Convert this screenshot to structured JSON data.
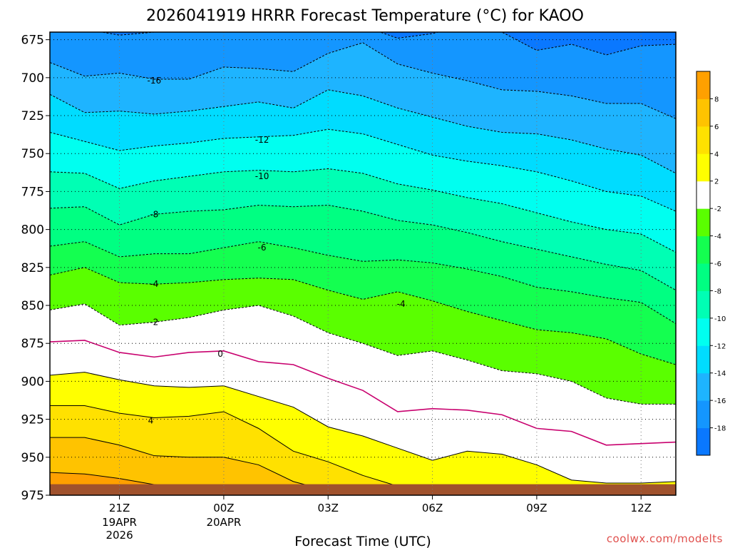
{
  "chart_data": {
    "type": "heatmap",
    "title": "2026041919 HRRR Forecast Temperature (°C) for KAOO",
    "xlabel": "Forecast Time (UTC)",
    "ylabel": "",
    "credit": "coolwx.com/modelts",
    "y_axis": {
      "unit": "hPa",
      "inverted": true,
      "ylim": [
        975,
        670
      ],
      "ticks": [
        "675",
        "700",
        "725",
        "750",
        "775",
        "800",
        "825",
        "850",
        "875",
        "900",
        "925",
        "950",
        "975"
      ]
    },
    "x_axis": {
      "xlim": [
        "2026-04-19T19Z",
        "2026-04-20T13Z"
      ],
      "ticks": [
        {
          "hour": 21,
          "label": "21Z",
          "sub": [
            "19APR",
            "2026"
          ]
        },
        {
          "hour": 24,
          "label": "00Z",
          "sub": [
            "20APR"
          ]
        },
        {
          "hour": 27,
          "label": "03Z",
          "sub": []
        },
        {
          "hour": 30,
          "label": "06Z",
          "sub": []
        },
        {
          "hour": 33,
          "label": "09Z",
          "sub": []
        },
        {
          "hour": 36,
          "label": "12Z",
          "sub": []
        }
      ],
      "hour_range": [
        19,
        37
      ]
    },
    "grid": true,
    "colorbar": {
      "placement": "right",
      "levels": [
        -20,
        -18,
        -16,
        -14,
        -12,
        -10,
        -8,
        -6,
        -4,
        -2,
        2,
        4,
        6,
        8,
        10
      ],
      "tick_labels": [
        "-18",
        "-16",
        "-14",
        "-12",
        "-10",
        "-8",
        "-6",
        "-4",
        "-2",
        "2",
        "4",
        "6",
        "8"
      ],
      "colors": [
        "#0a78ff",
        "#1496ff",
        "#1eb4ff",
        "#00dcff",
        "#00fff0",
        "#00ffb4",
        "#00ff82",
        "#14ff50",
        "#5aff00",
        "#ffffff",
        "#ffff00",
        "#ffe100",
        "#ffc300",
        "#ffa000"
      ]
    },
    "hours": [
      19,
      20,
      21,
      22,
      23,
      24,
      25,
      26,
      27,
      28,
      29,
      30,
      31,
      32,
      33,
      34,
      35,
      36,
      37
    ],
    "isotherm_pressures": [
      {
        "temp": -18,
        "p": [
          670,
          668,
          672,
          670,
          666,
          664,
          664,
          665,
          661,
          666,
          674,
          671,
          665,
          670,
          682,
          678,
          685,
          679,
          678
        ]
      },
      {
        "temp": -16,
        "p": [
          690,
          699,
          697,
          701,
          701,
          693,
          694,
          696,
          684,
          677,
          691,
          697,
          702,
          708,
          709,
          712,
          717,
          717,
          727
        ]
      },
      {
        "temp": -14,
        "p": [
          711,
          723,
          722,
          724,
          722,
          719,
          716,
          720,
          708,
          712,
          720,
          726,
          732,
          736,
          737,
          741,
          747,
          751,
          763
        ]
      },
      {
        "temp": -12,
        "p": [
          736,
          742,
          748,
          745,
          743,
          740,
          739,
          738,
          734,
          737,
          744,
          751,
          755,
          758,
          762,
          768,
          775,
          778,
          788
        ]
      },
      {
        "temp": -10,
        "p": [
          762,
          763,
          773,
          768,
          765,
          762,
          761,
          762,
          760,
          763,
          770,
          774,
          779,
          783,
          789,
          795,
          800,
          803,
          815
        ]
      },
      {
        "temp": -8,
        "p": [
          786,
          785,
          797,
          790,
          788,
          787,
          784,
          785,
          784,
          788,
          794,
          797,
          802,
          808,
          813,
          818,
          823,
          827,
          840
        ]
      },
      {
        "temp": -6,
        "p": [
          811,
          808,
          818,
          816,
          816,
          812,
          808,
          812,
          817,
          821,
          820,
          822,
          826,
          831,
          838,
          841,
          845,
          848,
          862
        ]
      },
      {
        "temp": -4,
        "p": [
          830,
          825,
          835,
          836,
          835,
          833,
          832,
          833,
          840,
          846,
          841,
          847,
          854,
          860,
          866,
          868,
          872,
          882,
          889
        ]
      },
      {
        "temp": -2,
        "p": [
          853,
          849,
          863,
          861,
          858,
          853,
          850,
          857,
          868,
          875,
          883,
          880,
          886,
          893,
          895,
          900,
          911,
          915,
          915
        ]
      },
      {
        "temp": 0,
        "p": [
          874,
          873,
          881,
          884,
          881,
          880,
          887,
          889,
          898,
          906,
          920,
          918,
          919,
          922,
          931,
          933,
          942,
          941,
          940
        ]
      },
      {
        "temp": 2,
        "p": [
          896,
          894,
          899,
          903,
          904,
          903,
          910,
          917,
          930,
          936,
          944,
          952,
          946,
          948,
          955,
          965,
          967,
          967,
          966
        ]
      },
      {
        "temp": 4,
        "p": [
          916,
          916,
          921,
          924,
          923,
          920,
          931,
          946,
          953,
          962,
          969,
          974,
          973,
          974,
          976,
          976,
          976,
          976,
          976
        ]
      },
      {
        "temp": 6,
        "p": [
          937,
          937,
          942,
          949,
          950,
          950,
          955,
          966,
          972,
          976,
          976,
          976,
          976,
          976,
          976,
          976,
          976,
          976,
          976
        ]
      },
      {
        "temp": 8,
        "p": [
          960,
          961,
          964,
          968,
          970,
          969,
          974,
          976,
          976,
          976,
          976,
          976,
          976,
          976,
          976,
          976,
          976,
          976,
          976
        ]
      }
    ],
    "contour_labels": [
      {
        "text": "-16",
        "hour": 22,
        "pressure": 702
      },
      {
        "text": "-12",
        "hour": 25.1,
        "pressure": 741
      },
      {
        "text": "-10",
        "hour": 25.1,
        "pressure": 765
      },
      {
        "text": "-8",
        "hour": 22,
        "pressure": 790
      },
      {
        "text": "-6",
        "hour": 25.1,
        "pressure": 812
      },
      {
        "text": "-4",
        "hour": 22,
        "pressure": 836
      },
      {
        "text": "-4",
        "hour": 29.1,
        "pressure": 849
      },
      {
        "text": "-2",
        "hour": 22,
        "pressure": 861
      },
      {
        "text": "0",
        "hour": 23.9,
        "pressure": 882
      },
      {
        "text": "4",
        "hour": 21.9,
        "pressure": 926
      }
    ],
    "ground": {
      "surface_pressure": 964,
      "bottom_pressure": 980
    }
  }
}
